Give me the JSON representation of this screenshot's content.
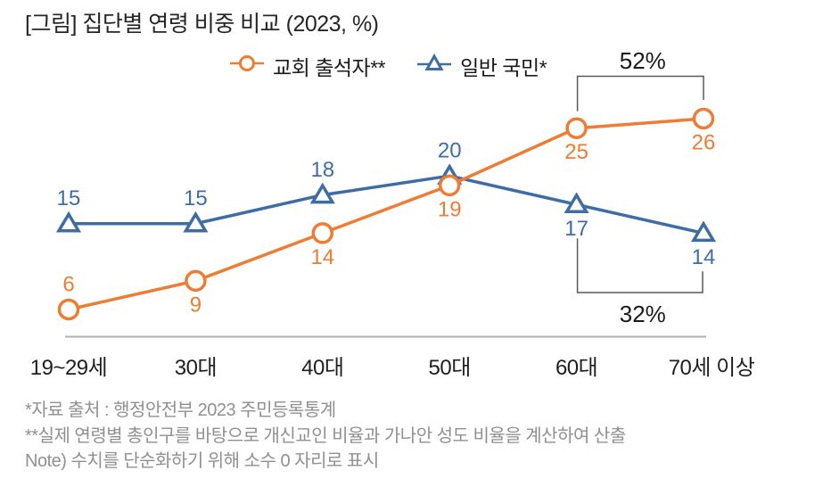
{
  "title": "[그림] 집단별 연령 비중 비교 (2023, %)",
  "legend": {
    "items": [
      {
        "label": "교회 출석자**",
        "marker": "circle",
        "color": "#EE7C33"
      },
      {
        "label": "일반 국민*",
        "marker": "triangle",
        "color": "#3E6DA5"
      }
    ]
  },
  "chart_data": {
    "type": "line",
    "title": "[그림] 집단별 연령 비중 비교 (2023, %)",
    "categories": [
      "19~29세",
      "30대",
      "40대",
      "50대",
      "60대",
      "70세 이상"
    ],
    "series": [
      {
        "name": "교회 출석자**",
        "marker": "circle",
        "color": "#EE7C33",
        "values": [
          6,
          9,
          14,
          19,
          25,
          26
        ],
        "label_side": [
          "above",
          "below",
          "below",
          "below",
          "below",
          "below"
        ]
      },
      {
        "name": "일반 국민*",
        "marker": "triangle",
        "color": "#3E6DA5",
        "values": [
          15,
          15,
          18,
          20,
          17,
          14
        ],
        "label_side": [
          "above",
          "above",
          "above",
          "above",
          "below",
          "below"
        ]
      }
    ],
    "annotations": [
      {
        "text": "52%",
        "type": "bracket-above",
        "series_index": 0,
        "from_index": 4,
        "to_index": 5
      },
      {
        "text": "32%",
        "type": "bracket-below",
        "series_index": 1,
        "from_index": 4,
        "to_index": 5
      }
    ],
    "xlabel": "",
    "ylabel": "",
    "ylim": [
      0,
      30
    ],
    "grid": false,
    "legend_position": "top-center"
  },
  "colors": {
    "orange_series": "#EE7C33",
    "blue_series": "#3E6DA5",
    "axis_line": "#b3b0b0",
    "bracket": "#595959",
    "annotation_text": "#1a1a1a",
    "axis_label_text": "#1f1f1f",
    "footnote_text": "#909090"
  },
  "footnotes": [
    "*자료 출처 : 행정안전부 2023 주민등록통계",
    "**실제 연령별 총인구를 바탕으로 개신교인 비율과 가나안 성도 비율을 계산하여 산출",
    "Note) 수치를 단순화하기 위해 소수 0 자리로 표시"
  ]
}
